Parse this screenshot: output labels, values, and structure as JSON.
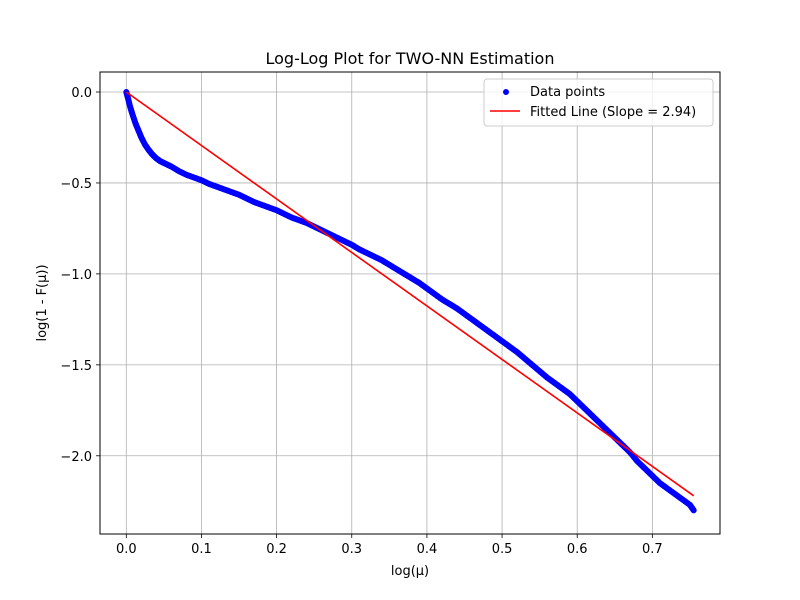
{
  "chart_data": {
    "type": "scatter",
    "title": "Log-Log Plot for TWO-NN Estimation",
    "xlabel": "log(μ)",
    "ylabel": "log(1 - F(μ))",
    "xlim": [
      -0.035,
      0.79
    ],
    "ylim": [
      -2.43,
      0.11
    ],
    "x_ticks": [
      0.0,
      0.1,
      0.2,
      0.3,
      0.4,
      0.5,
      0.6,
      0.7
    ],
    "x_tick_labels": [
      "0.0",
      "0.1",
      "0.2",
      "0.3",
      "0.4",
      "0.5",
      "0.6",
      "0.7"
    ],
    "y_ticks": [
      0.0,
      -0.5,
      -1.0,
      -1.5,
      -2.0
    ],
    "y_tick_labels": [
      "0.0",
      "−0.5",
      "−1.0",
      "−1.5",
      "−2.0"
    ],
    "grid": true,
    "legend_position": "top-right",
    "series": [
      {
        "name": "Data points",
        "kind": "scatter",
        "color": "#0000ff",
        "x": [
          0.0,
          0.002,
          0.005,
          0.008,
          0.012,
          0.016,
          0.02,
          0.025,
          0.03,
          0.035,
          0.04,
          0.045,
          0.05,
          0.055,
          0.06,
          0.07,
          0.08,
          0.09,
          0.1,
          0.11,
          0.12,
          0.13,
          0.14,
          0.15,
          0.16,
          0.17,
          0.18,
          0.19,
          0.2,
          0.21,
          0.22,
          0.23,
          0.24,
          0.25,
          0.26,
          0.27,
          0.28,
          0.29,
          0.3,
          0.31,
          0.32,
          0.33,
          0.34,
          0.35,
          0.36,
          0.37,
          0.38,
          0.39,
          0.4,
          0.41,
          0.42,
          0.43,
          0.44,
          0.45,
          0.46,
          0.47,
          0.48,
          0.49,
          0.5,
          0.51,
          0.52,
          0.53,
          0.54,
          0.55,
          0.56,
          0.57,
          0.58,
          0.59,
          0.6,
          0.61,
          0.62,
          0.63,
          0.64,
          0.65,
          0.66,
          0.67,
          0.68,
          0.69,
          0.7,
          0.71,
          0.72,
          0.73,
          0.74,
          0.75,
          0.755
        ],
        "y": [
          0.0,
          -0.03,
          -0.08,
          -0.12,
          -0.17,
          -0.21,
          -0.25,
          -0.29,
          -0.32,
          -0.345,
          -0.365,
          -0.38,
          -0.39,
          -0.4,
          -0.41,
          -0.435,
          -0.455,
          -0.47,
          -0.485,
          -0.505,
          -0.52,
          -0.535,
          -0.55,
          -0.565,
          -0.585,
          -0.605,
          -0.62,
          -0.635,
          -0.65,
          -0.67,
          -0.69,
          -0.705,
          -0.72,
          -0.74,
          -0.76,
          -0.78,
          -0.8,
          -0.82,
          -0.84,
          -0.865,
          -0.885,
          -0.905,
          -0.925,
          -0.95,
          -0.975,
          -1.0,
          -1.025,
          -1.05,
          -1.08,
          -1.11,
          -1.14,
          -1.165,
          -1.19,
          -1.22,
          -1.25,
          -1.28,
          -1.31,
          -1.34,
          -1.37,
          -1.4,
          -1.43,
          -1.465,
          -1.5,
          -1.535,
          -1.57,
          -1.6,
          -1.63,
          -1.66,
          -1.7,
          -1.74,
          -1.78,
          -1.82,
          -1.86,
          -1.9,
          -1.94,
          -1.98,
          -2.03,
          -2.07,
          -2.11,
          -2.15,
          -2.18,
          -2.21,
          -2.24,
          -2.27,
          -2.3
        ]
      },
      {
        "name": "Fitted Line (Slope = 2.94)",
        "kind": "line",
        "color": "#ff0000",
        "x": [
          0.0,
          0.755
        ],
        "y": [
          0.0,
          -2.22
        ]
      }
    ]
  }
}
